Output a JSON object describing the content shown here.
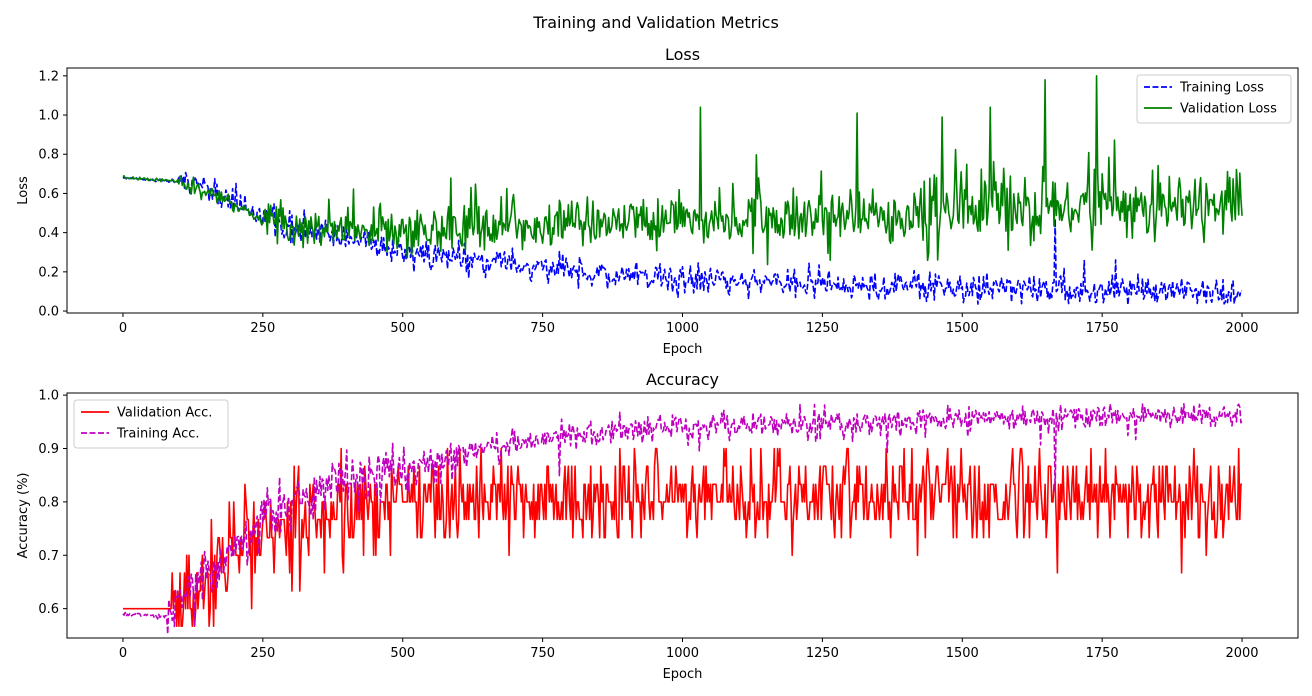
{
  "suptitle": "Training and Validation Metrics",
  "chart_data": [
    {
      "type": "line",
      "title": "Loss",
      "xlabel": "Epoch",
      "ylabel": "Loss",
      "xlim": [
        -100,
        2100
      ],
      "ylim": [
        -0.01,
        1.24
      ],
      "xticks": [
        0,
        250,
        500,
        750,
        1000,
        1250,
        1500,
        1750,
        2000
      ],
      "yticks": [
        0.0,
        0.2,
        0.4,
        0.6,
        0.8,
        1.0,
        1.2
      ],
      "ytick_labels": [
        "0.0",
        "0.2",
        "0.4",
        "0.6",
        "0.8",
        "1.0",
        "1.2"
      ],
      "grid": false,
      "legend_position": "top-right",
      "x_range": [
        0,
        2000
      ],
      "series": [
        {
          "name": "Training Loss",
          "color": "#0000ff",
          "style": "dashed",
          "trend_x": [
            0,
            100,
            150,
            200,
            250,
            300,
            400,
            500,
            600,
            700,
            800,
            900,
            1000,
            1200,
            1400,
            1600,
            1800,
            2000
          ],
          "trend_y": [
            0.68,
            0.66,
            0.62,
            0.56,
            0.49,
            0.42,
            0.37,
            0.31,
            0.27,
            0.23,
            0.2,
            0.18,
            0.16,
            0.14,
            0.12,
            0.11,
            0.1,
            0.09
          ],
          "spike_x": [
            1665
          ],
          "spike_y": [
            0.47
          ]
        },
        {
          "name": "Validation Loss",
          "color": "#008000",
          "style": "solid",
          "trend_x": [
            0,
            100,
            150,
            200,
            250,
            300,
            400,
            500,
            600,
            700,
            800,
            1000,
            1250,
            1500,
            1750,
            2000
          ],
          "trend_y": [
            0.68,
            0.66,
            0.61,
            0.55,
            0.46,
            0.42,
            0.41,
            0.4,
            0.41,
            0.43,
            0.45,
            0.46,
            0.49,
            0.51,
            0.53,
            0.55
          ],
          "spike_x": [
            1032,
            1312,
            1464,
            1550,
            1648,
            1740
          ],
          "spike_y": [
            1.04,
            1.01,
            0.99,
            1.04,
            1.18,
            1.2
          ]
        }
      ]
    },
    {
      "type": "line",
      "title": "Accuracy",
      "xlabel": "Epoch",
      "ylabel": "Accuracy (%)",
      "xlim": [
        -100,
        2100
      ],
      "ylim": [
        0.545,
        1.004
      ],
      "xticks": [
        0,
        250,
        500,
        750,
        1000,
        1250,
        1500,
        1750,
        2000
      ],
      "yticks": [
        0.6,
        0.7,
        0.8,
        0.9,
        1.0
      ],
      "ytick_labels": [
        "0.6",
        "0.7",
        "0.8",
        "0.9",
        "1.0"
      ],
      "grid": false,
      "legend_position": "top-left",
      "x_range": [
        0,
        2000
      ],
      "series": [
        {
          "name": "Validation Acc.",
          "color": "#ff0000",
          "style": "solid",
          "trend_x": [
            0,
            85,
            100,
            150,
            200,
            250,
            300,
            400,
            500,
            750,
            1000,
            1500,
            2000
          ],
          "trend_y": [
            0.6,
            0.6,
            0.6,
            0.66,
            0.71,
            0.74,
            0.76,
            0.79,
            0.8,
            0.81,
            0.81,
            0.81,
            0.81
          ],
          "levels": [
            0.567,
            0.6,
            0.633,
            0.667,
            0.7,
            0.733,
            0.767,
            0.8,
            0.833,
            0.867,
            0.9,
            0.933
          ]
        },
        {
          "name": "Training Acc.",
          "color": "#bf00bf",
          "style": "dashed",
          "trend_x": [
            0,
            75,
            100,
            150,
            200,
            250,
            300,
            400,
            500,
            600,
            700,
            800,
            1000,
            1250,
            1500,
            1750,
            2000
          ],
          "trend_y": [
            0.59,
            0.585,
            0.6,
            0.66,
            0.72,
            0.77,
            0.8,
            0.84,
            0.87,
            0.89,
            0.91,
            0.925,
            0.94,
            0.95,
            0.955,
            0.96,
            0.962
          ],
          "spike_x": [
            1665
          ],
          "spike_y": [
            0.82
          ]
        }
      ]
    }
  ]
}
